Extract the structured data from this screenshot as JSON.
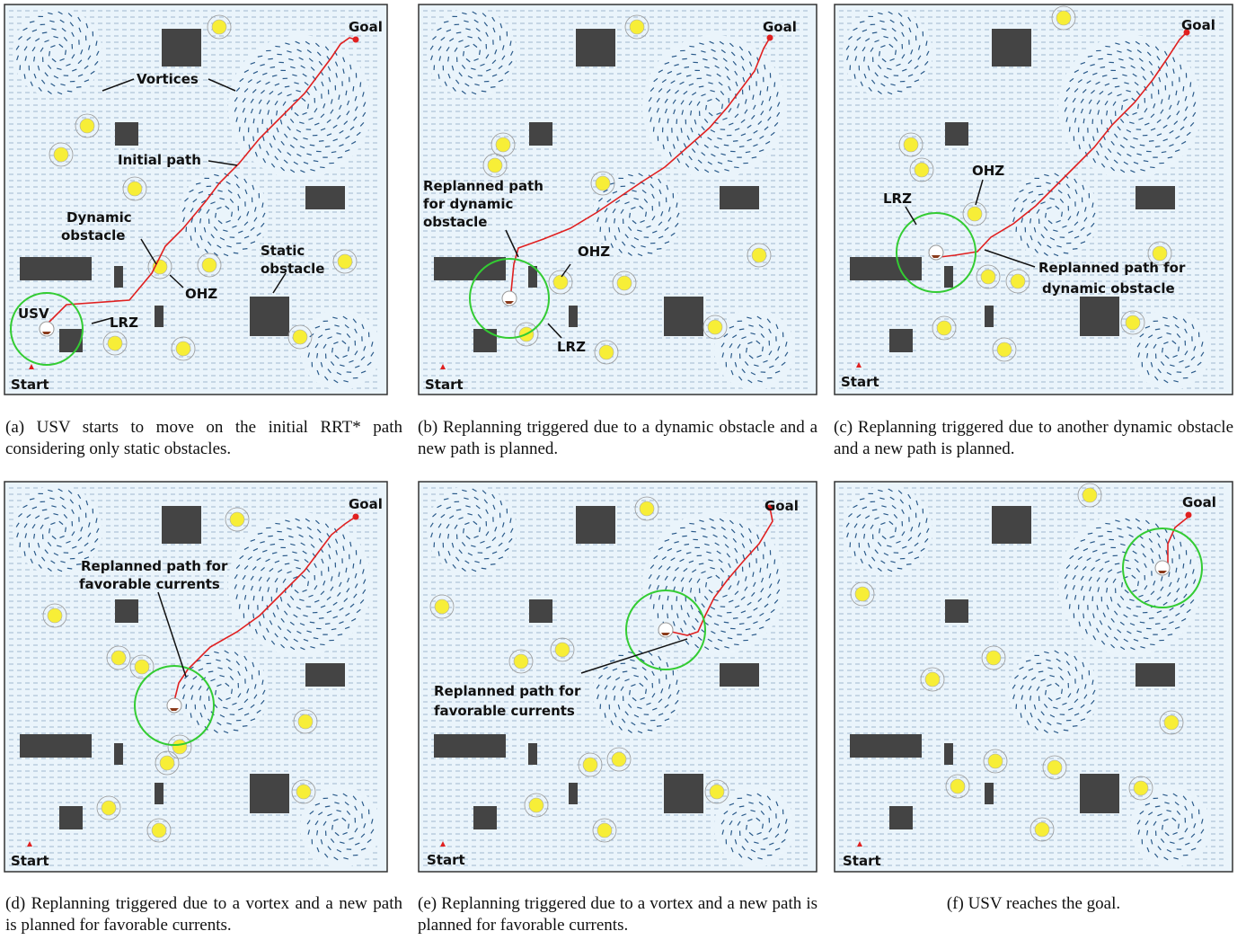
{
  "colors": {
    "background": "#eaf4fb",
    "current_arrows": "#2a5a8a",
    "obstacle": "#444444",
    "ohz_fill": "#f7ee37",
    "path": "#e02020",
    "lrz": "#33cc33",
    "start_marker": "#e02020"
  },
  "panels": [
    {
      "id": "a",
      "labels": {
        "goal": "Goal",
        "start": "Start",
        "vortices": "Vortices",
        "initial_path": "Initial path",
        "dynamic_obstacle": "Dynamic obstacle",
        "static_obstacle": "Static obstacle",
        "ohz": "OHZ",
        "usv": "USV",
        "lrz": "LRZ"
      },
      "caption": "(a) USV starts to move on the initial RRT* path considering only static obstacles."
    },
    {
      "id": "b",
      "labels": {
        "goal": "Goal",
        "start": "Start",
        "replanned": "Replanned path for dynamic obstacle",
        "ohz": "OHZ",
        "lrz": "LRZ"
      },
      "caption": "(b) Replanning triggered due to a dynamic obstacle and a new path is planned."
    },
    {
      "id": "c",
      "labels": {
        "goal": "Goal",
        "start": "Start",
        "ohz": "OHZ",
        "lrz": "LRZ",
        "replanned": "Replanned path for dynamic obstacle"
      },
      "caption": "(c) Replanning triggered due to another dynamic obstacle and a new path is planned."
    },
    {
      "id": "d",
      "labels": {
        "goal": "Goal",
        "start": "Start",
        "replanned": "Replanned path for favorable currents"
      },
      "caption": "(d) Replanning triggered due to a vortex and a new path is planned for favorable currents."
    },
    {
      "id": "e",
      "labels": {
        "goal": "Goal",
        "start": "Start",
        "replanned": "Replanned path for favorable currents"
      },
      "caption": "(e) Replanning triggered due to a vortex and a new path is planned for favorable currents."
    },
    {
      "id": "f",
      "labels": {
        "goal": "Goal",
        "start": "Start"
      },
      "caption": "(f) USV reaches the goal."
    }
  ]
}
